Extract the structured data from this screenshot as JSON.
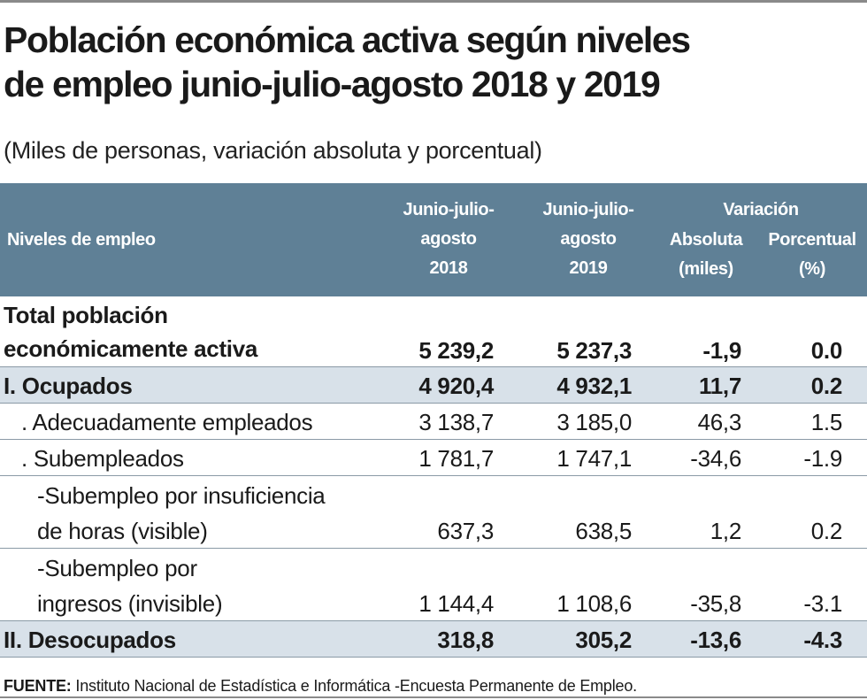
{
  "title_line1": "Población económica activa según niveles",
  "title_line2": "de empleo junio-julio-agosto 2018 y 2019",
  "subtitle": "(Miles de personas, variación absoluta y porcentual)",
  "header": {
    "label": "Niveles de empleo",
    "col2018": [
      "Junio-julio-",
      "agosto",
      "2018"
    ],
    "col2019": [
      "Junio-julio-",
      "agosto",
      "2019"
    ],
    "variation": "Variación",
    "absolute": [
      "Absoluta",
      "(miles)"
    ],
    "percent": [
      "Porcentual",
      "(%)"
    ]
  },
  "rows": [
    {
      "label": [
        "Total población",
        "económicamente activa"
      ],
      "v2018": "5 239,2",
      "v2019": "5 237,3",
      "abs": "-1,9",
      "pct": "0.0"
    },
    {
      "label": "I. Ocupados",
      "v2018": "4 920,4",
      "v2019": "4 932,1",
      "abs": "11,7",
      "pct": "0.2"
    },
    {
      "label": ". Adecuadamente empleados",
      "v2018": "3 138,7",
      "v2019": "3 185,0",
      "abs": "46,3",
      "pct": "1.5"
    },
    {
      "label": ". Subempleados",
      "v2018": "1 781,7",
      "v2019": "1 747,1",
      "abs": "-34,6",
      "pct": "-1.9"
    },
    {
      "label": [
        "-Subempleo por insuficiencia",
        "de horas (visible)"
      ],
      "v2018": "637,3",
      "v2019": "638,5",
      "abs": "1,2",
      "pct": "0.2"
    },
    {
      "label": [
        "-Subempleo por",
        "ingresos (invisible)"
      ],
      "v2018": "1 144,4",
      "v2019": "1 108,6",
      "abs": "-35,8",
      "pct": "-3.1"
    },
    {
      "label": "II. Desocupados",
      "v2018": "318,8",
      "v2019": "305,2",
      "abs": "-13,6",
      "pct": "-4.3"
    }
  ],
  "footer": {
    "source_label": "FUENTE:",
    "source_text": " Instituto Nacional de Estadística e Informática -Encuesta Permanente de Empleo."
  },
  "colors": {
    "header_bg": "#5f8096",
    "shaded_row": "#d8e1e9",
    "text": "#1a1a1a"
  }
}
